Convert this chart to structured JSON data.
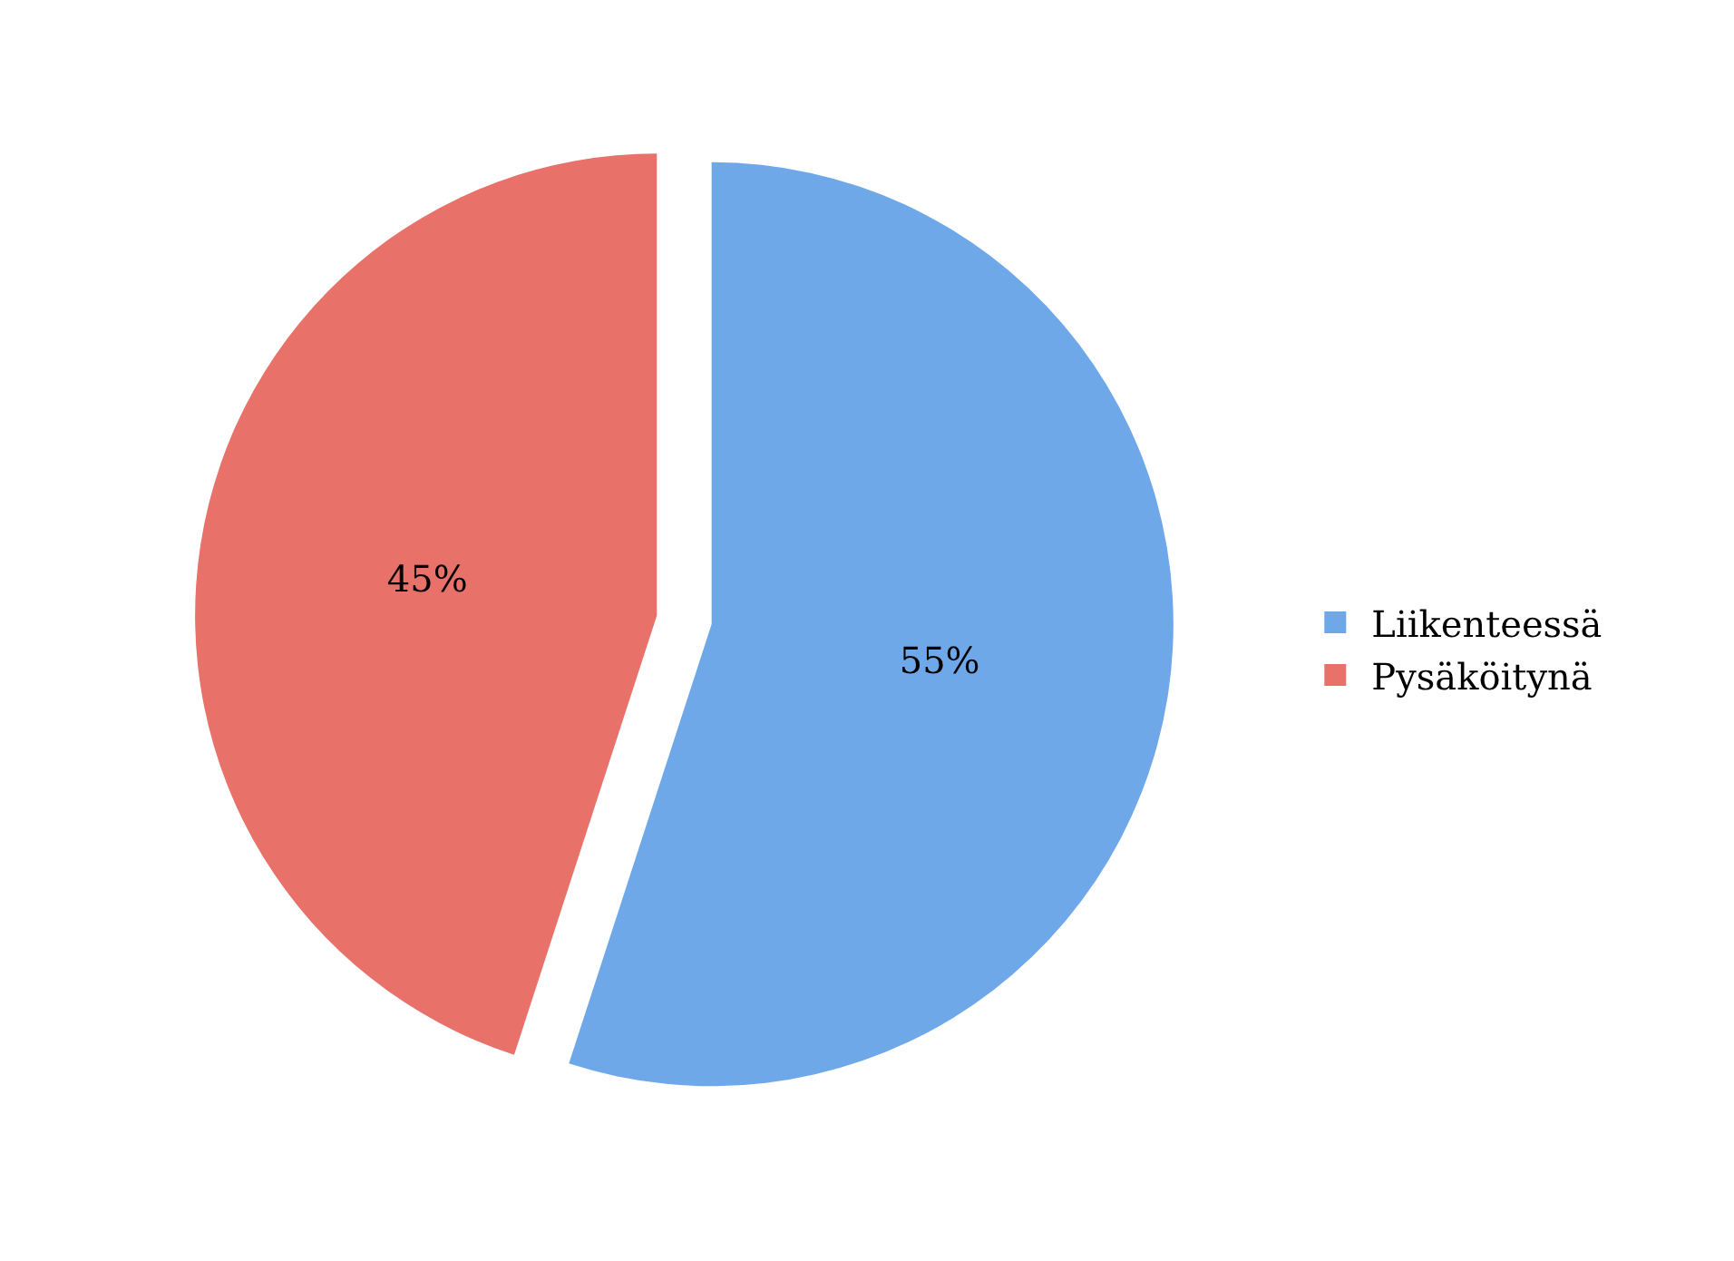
{
  "chart_data": {
    "type": "pie",
    "categories": [
      "Liikenteessä",
      "Pysäköitynä"
    ],
    "values": [
      55,
      45
    ],
    "colors": [
      "#6fa8e8",
      "#e8716a"
    ],
    "value_labels": [
      "55%",
      "45%"
    ],
    "legend": "right"
  }
}
